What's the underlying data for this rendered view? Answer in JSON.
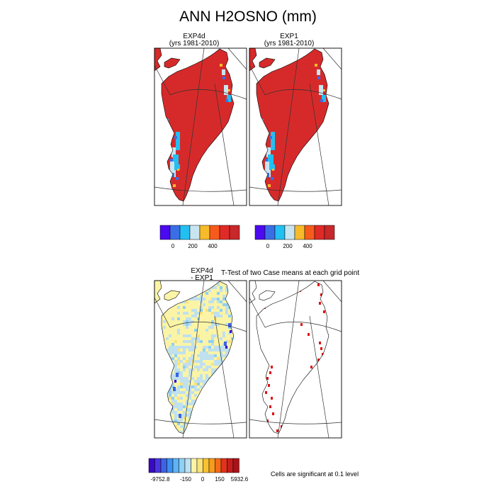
{
  "figure": {
    "title": "ANN H2OSNO (mm)",
    "panels": [
      {
        "name": "EXP4d",
        "subtitle": "(yrs 1981-2010)"
      },
      {
        "name": "EXP1",
        "subtitle": "(yrs 1981-2010)"
      },
      {
        "name": "EXP4d",
        "subtitle": "- EXP1"
      },
      {
        "name": "T-Test of two Case means at each grid point",
        "subtitle": ""
      }
    ],
    "ttest_note": "Cells are significant at 0.1 level",
    "colors": {
      "means": [
        "#4b0af0",
        "#3a6ee6",
        "#22bff2",
        "#c8e5f0",
        "#f7bb2a",
        "#f75b1c",
        "#e02a26",
        "#c8282a"
      ],
      "diff": [
        "#3a08c8",
        "#4a35e0",
        "#3b63e6",
        "#3c8ff0",
        "#5db3f4",
        "#8fd0f4",
        "#bfe0ee",
        "#fbf4a6",
        "#fbe27a",
        "#f8c230",
        "#f79a1f",
        "#f46b18",
        "#e2321e",
        "#c21e1e",
        "#a8141a"
      ],
      "sig": "#e01010",
      "land_main": "#d62a2a"
    }
  },
  "chart_data": [
    {
      "type": "heatmap",
      "panel": "EXP4d (yrs 1981-2010)",
      "colorbar_ticks": [
        "0",
        "200",
        "400"
      ],
      "colorbar_levels": [
        -100,
        0,
        100,
        200,
        300,
        400,
        500
      ],
      "units": "mm"
    },
    {
      "type": "heatmap",
      "panel": "EXP1 (yrs 1981-2010)",
      "colorbar_ticks": [
        "0",
        "200",
        "400"
      ],
      "colorbar_levels": [
        -100,
        0,
        100,
        200,
        300,
        400,
        500
      ],
      "units": "mm"
    },
    {
      "type": "heatmap",
      "panel": "EXP4d - EXP1",
      "colorbar_ticks": [
        "-9752.8",
        "-150",
        "0",
        "150",
        "5932.6"
      ],
      "min": -9752.8,
      "max": 5932.6
    },
    {
      "type": "heatmap",
      "panel": "T-Test of two Case means at each grid point",
      "note": "Cells are significant at 0.1 level"
    }
  ]
}
